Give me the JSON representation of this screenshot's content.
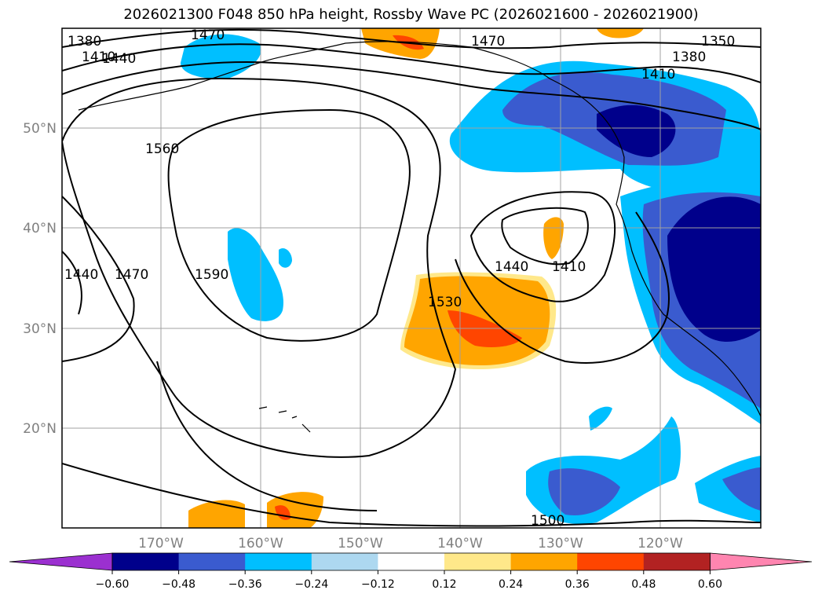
{
  "title": "2026021300 F048 850 hPa height, Rossby Wave PC (2026021600 - 2026021900)",
  "axes": {
    "lat_labels": [
      "50°N",
      "40°N",
      "30°N",
      "20°N"
    ],
    "lon_labels": [
      "170°W",
      "160°W",
      "150°W",
      "140°W",
      "130°W",
      "120°W"
    ]
  },
  "contour_labels": [
    "1380",
    "1410",
    "1440",
    "1470",
    "1560",
    "1590",
    "1440",
    "1470",
    "1530",
    "1440",
    "1410",
    "1350",
    "1380",
    "1410",
    "1470",
    "1500"
  ],
  "colorbar": {
    "ticks": [
      "−0.60",
      "−0.48",
      "−0.36",
      "−0.24",
      "−0.12",
      "0.12",
      "0.24",
      "0.36",
      "0.48",
      "0.60"
    ],
    "colors": [
      "#9b30d0",
      "#00008b",
      "#3a5bcf",
      "#00bfff",
      "#add8f0",
      "#ffffff",
      "#ffe88a",
      "#ffa500",
      "#ff4500",
      "#b22222",
      "#ff85b0"
    ]
  }
}
